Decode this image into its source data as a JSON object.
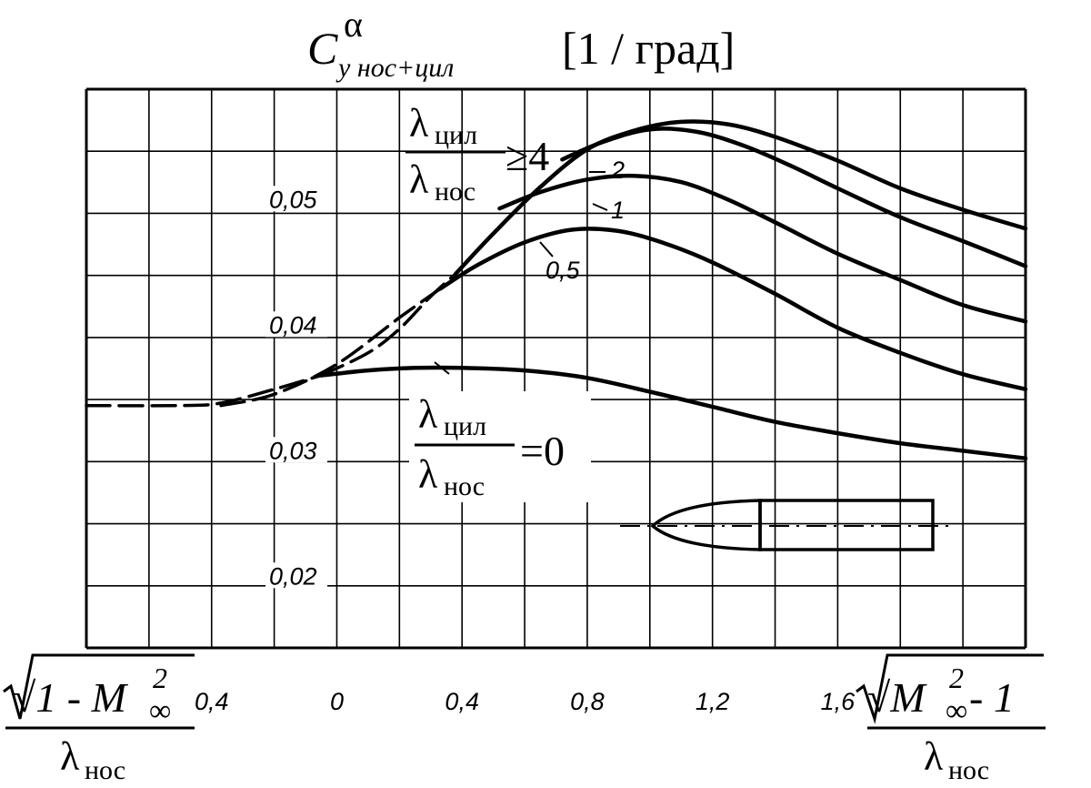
{
  "chart_data": {
    "type": "line",
    "title": {
      "base": "C",
      "superscript": "α",
      "subscript": "y нос+цил",
      "unit": "[1 / град]"
    },
    "x_axis": {
      "left_label": {
        "numerator": "√1 - M",
        "sup": "2",
        "sub": "∞",
        "denominator": "λ",
        "den_sub": "нос"
      },
      "right_label": {
        "numerator": "√M",
        "sup": "2",
        "sub": "∞",
        "tail": " - 1",
        "denominator": "λ",
        "den_sub": "нос"
      },
      "range": [
        -0.8,
        2.2
      ],
      "tick_labels": [
        "0,4",
        "0",
        "0,4",
        "0,8",
        "1,2",
        "1,6"
      ],
      "tick_values": [
        -0.4,
        0,
        0.4,
        0.8,
        1.2,
        1.6
      ]
    },
    "y_axis": {
      "range": [
        0.0148,
        0.0593
      ],
      "tick_labels": [
        "0,02",
        "0,03",
        "0,04",
        "0,05"
      ],
      "tick_values": [
        0.02,
        0.03,
        0.04,
        0.05
      ]
    },
    "grid": true,
    "series": [
      {
        "name": "0",
        "dashed_x": [
          -0.8,
          -0.5,
          -0.37,
          -0.2,
          -0.05
        ],
        "dashed_y": [
          0.0341,
          0.0341,
          0.0343,
          0.0354,
          0.0365
        ],
        "x": [
          -0.05,
          0.1,
          0.25,
          0.4,
          0.6,
          0.8,
          1.0,
          1.2,
          1.4,
          1.6,
          1.8,
          2.0,
          2.2
        ],
        "y": [
          0.0365,
          0.0369,
          0.0371,
          0.0371,
          0.0369,
          0.0363,
          0.0352,
          0.034,
          0.0328,
          0.0319,
          0.0311,
          0.0305,
          0.0299
        ]
      },
      {
        "name": "0,5",
        "dashed_x": [
          -0.37,
          -0.2,
          0,
          0.2,
          0.33
        ],
        "dashed_y": [
          0.0341,
          0.035,
          0.0374,
          0.0411,
          0.0434
        ],
        "x": [
          0.33,
          0.45,
          0.6,
          0.75,
          0.9,
          1.05,
          1.2,
          1.4,
          1.6,
          1.8,
          2.0,
          2.2
        ],
        "y": [
          0.0434,
          0.0453,
          0.0471,
          0.0481,
          0.048,
          0.047,
          0.0455,
          0.043,
          0.0403,
          0.0383,
          0.0366,
          0.0354
        ]
      },
      {
        "name": "1",
        "x": [
          0.52,
          0.65,
          0.8,
          0.95,
          1.1,
          1.25,
          1.4,
          1.6,
          1.8,
          2.0,
          2.2
        ],
        "y": [
          0.0498,
          0.0511,
          0.0521,
          0.0524,
          0.0519,
          0.0505,
          0.0487,
          0.0462,
          0.0441,
          0.0421,
          0.0408
        ]
      },
      {
        "name": "2",
        "x": [
          0.72,
          0.85,
          1.0,
          1.15,
          1.3,
          1.45,
          1.6,
          1.8,
          2.0,
          2.2
        ],
        "y": [
          0.0537,
          0.0551,
          0.0561,
          0.0559,
          0.0548,
          0.0532,
          0.0514,
          0.0491,
          0.0472,
          0.0452
        ]
      },
      {
        "name": "≥4",
        "dashed_x": [
          -0.05,
          0.1,
          0.2,
          0.3,
          0.38
        ],
        "dashed_y": [
          0.0365,
          0.0383,
          0.0402,
          0.0428,
          0.0446
        ],
        "x": [
          0.38,
          0.5,
          0.65,
          0.8,
          0.95,
          1.1,
          1.25,
          1.4,
          1.6,
          1.8,
          2.0,
          2.2
        ],
        "y": [
          0.0446,
          0.0478,
          0.0515,
          0.0545,
          0.056,
          0.0567,
          0.0565,
          0.0555,
          0.0536,
          0.0514,
          0.0497,
          0.0482
        ]
      }
    ],
    "annotations": {
      "ratio_numerator": "λ",
      "ratio_num_sub": "цил",
      "ratio_denominator": "λ",
      "ratio_den_sub": "нос",
      "top_label_value": "≥4",
      "bottom_label_value": "=0",
      "curve_labels": [
        "2",
        "1",
        "0,5"
      ]
    }
  }
}
